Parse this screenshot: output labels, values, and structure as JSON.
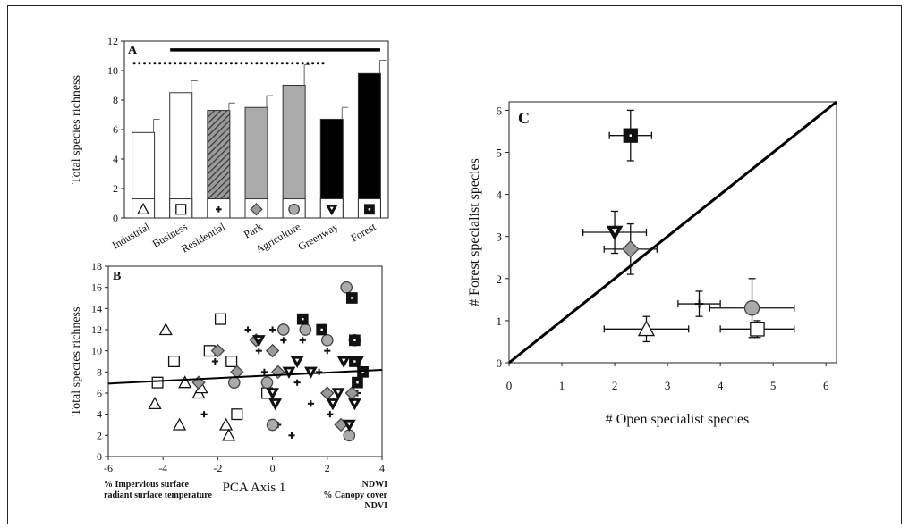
{
  "chart_data": [
    {
      "panel": "A",
      "type": "bar",
      "ylabel": "Total species richness",
      "ylim": [
        0,
        12
      ],
      "yticks": [
        0,
        2,
        4,
        6,
        8,
        10,
        12
      ],
      "categories": [
        "Industrial",
        "Business",
        "Residential",
        "Park",
        "Agriculture",
        "Greenway",
        "Forest"
      ],
      "values": [
        5.8,
        8.5,
        7.3,
        7.5,
        9.0,
        6.7,
        9.8
      ],
      "errors": [
        0.9,
        0.8,
        0.5,
        0.8,
        1.4,
        0.8,
        0.9
      ],
      "styles": [
        {
          "fill": "#ffffff",
          "pattern": "none",
          "symbol": "triangle"
        },
        {
          "fill": "#ffffff",
          "pattern": "none",
          "symbol": "square"
        },
        {
          "fill": "#555555",
          "pattern": "hatch",
          "symbol": "plus"
        },
        {
          "fill": "#aaaaaa",
          "pattern": "none",
          "symbol": "diamond"
        },
        {
          "fill": "#aaaaaa",
          "pattern": "none",
          "symbol": "circle"
        },
        {
          "fill": "#000000",
          "pattern": "none",
          "symbol": "triangle-down"
        },
        {
          "fill": "#000000",
          "pattern": "none",
          "symbol": "square-filled"
        }
      ],
      "solid_line": {
        "from": 1,
        "to": 6,
        "y": 11.4
      },
      "dotted_line": {
        "from": 0,
        "to": 4.5,
        "y": 10.5
      }
    },
    {
      "panel": "B",
      "type": "scatter",
      "xlabel": "PCA Axis 1",
      "ylabel": "Total species richness",
      "xlim": [
        -6,
        4
      ],
      "ylim": [
        0,
        18
      ],
      "xticks": [
        -6,
        -4,
        -2,
        0,
        2,
        4
      ],
      "yticks": [
        0,
        2,
        4,
        6,
        8,
        10,
        12,
        14,
        16,
        18
      ],
      "left_annotation": [
        "% Impervious surface",
        "radiant surface temperature"
      ],
      "right_annotation": [
        "NDWI",
        "% Canopy cover",
        "NDVI"
      ],
      "trend_line": {
        "x": [
          -6,
          4
        ],
        "y": [
          6.9,
          8.2
        ]
      },
      "series": [
        {
          "symbol": "triangle",
          "points": [
            [
              -4.3,
              5
            ],
            [
              -3.9,
              12
            ],
            [
              -3.4,
              3
            ],
            [
              -3.2,
              7
            ],
            [
              -2.7,
              6
            ],
            [
              -2.6,
              6.5
            ],
            [
              -1.7,
              3
            ],
            [
              -1.6,
              2
            ]
          ]
        },
        {
          "symbol": "square",
          "points": [
            [
              -4.2,
              7
            ],
            [
              -3.6,
              9
            ],
            [
              -2.3,
              10
            ],
            [
              -1.9,
              13
            ],
            [
              -1.5,
              9
            ],
            [
              -1.3,
              4
            ],
            [
              -0.2,
              6
            ]
          ]
        },
        {
          "symbol": "plus",
          "points": [
            [
              -2.5,
              4
            ],
            [
              -2.1,
              9
            ],
            [
              -1.3,
              7
            ],
            [
              -0.9,
              12
            ],
            [
              -0.5,
              10
            ],
            [
              -0.3,
              8
            ],
            [
              0,
              12
            ],
            [
              0.2,
              3
            ],
            [
              0.4,
              11
            ],
            [
              0.7,
              2
            ],
            [
              0.9,
              7
            ],
            [
              1.1,
              11
            ],
            [
              1.4,
              5
            ],
            [
              1.7,
              8
            ],
            [
              2.0,
              10
            ],
            [
              2.1,
              4
            ],
            [
              2.4,
              6
            ],
            [
              3.1,
              6
            ],
            [
              3.2,
              8
            ]
          ]
        },
        {
          "symbol": "diamond",
          "points": [
            [
              -2.7,
              7
            ],
            [
              -2.0,
              10
            ],
            [
              -1.3,
              8
            ],
            [
              -0.6,
              11
            ],
            [
              0,
              10
            ],
            [
              0.2,
              8
            ],
            [
              2.0,
              6
            ],
            [
              2.5,
              3
            ],
            [
              2.9,
              6
            ]
          ]
        },
        {
          "symbol": "circle",
          "points": [
            [
              -1.4,
              7
            ],
            [
              -0.2,
              7
            ],
            [
              0,
              3
            ],
            [
              0.4,
              12
            ],
            [
              1.2,
              12
            ],
            [
              2.0,
              11
            ],
            [
              2.7,
              16
            ],
            [
              2.8,
              2
            ],
            [
              3.0,
              11
            ]
          ]
        },
        {
          "symbol": "triangle-down",
          "points": [
            [
              -0.5,
              11
            ],
            [
              0,
              6
            ],
            [
              0.1,
              5
            ],
            [
              0.6,
              8
            ],
            [
              0.9,
              9
            ],
            [
              1.4,
              8
            ],
            [
              2.2,
              5
            ],
            [
              2.4,
              6
            ],
            [
              2.6,
              9
            ],
            [
              2.8,
              3
            ],
            [
              3.0,
              5
            ],
            [
              3.1,
              9
            ]
          ]
        },
        {
          "symbol": "square-filled",
          "points": [
            [
              1.1,
              13
            ],
            [
              1.8,
              12
            ],
            [
              2.9,
              15
            ],
            [
              3.0,
              11
            ],
            [
              3.0,
              9
            ],
            [
              3.1,
              7
            ],
            [
              3.3,
              8
            ]
          ]
        }
      ]
    },
    {
      "panel": "C",
      "type": "scatter",
      "xlabel": "# Open specialist species",
      "ylabel": "# Forest specialist species",
      "xlim": [
        0,
        6.2
      ],
      "ylim": [
        0,
        6.2
      ],
      "xticks": [
        0,
        1,
        2,
        3,
        4,
        5,
        6
      ],
      "yticks": [
        0,
        1,
        2,
        3,
        4,
        5,
        6
      ],
      "one_to_one_line": {
        "x": [
          0,
          6.2
        ],
        "y": [
          0,
          6.2
        ]
      },
      "points": [
        {
          "symbol": "square-filled",
          "x": 2.3,
          "y": 5.4,
          "xerr": 0.4,
          "yerr": 0.6
        },
        {
          "symbol": "triangle-down",
          "x": 2.0,
          "y": 3.1,
          "xerr": 0.6,
          "yerr": 0.5
        },
        {
          "symbol": "diamond",
          "x": 2.3,
          "y": 2.7,
          "xerr": 0.5,
          "yerr": 0.6
        },
        {
          "symbol": "plus",
          "x": 3.6,
          "y": 1.4,
          "xerr": 0.4,
          "yerr": 0.3
        },
        {
          "symbol": "circle",
          "x": 4.6,
          "y": 1.3,
          "xerr": 0.8,
          "yerr": 0.7
        },
        {
          "symbol": "triangle",
          "x": 2.6,
          "y": 0.8,
          "xerr": 0.8,
          "yerr": 0.3
        },
        {
          "symbol": "square",
          "x": 4.7,
          "y": 0.8,
          "xerr": 0.7,
          "yerr": 0.2
        }
      ]
    }
  ]
}
